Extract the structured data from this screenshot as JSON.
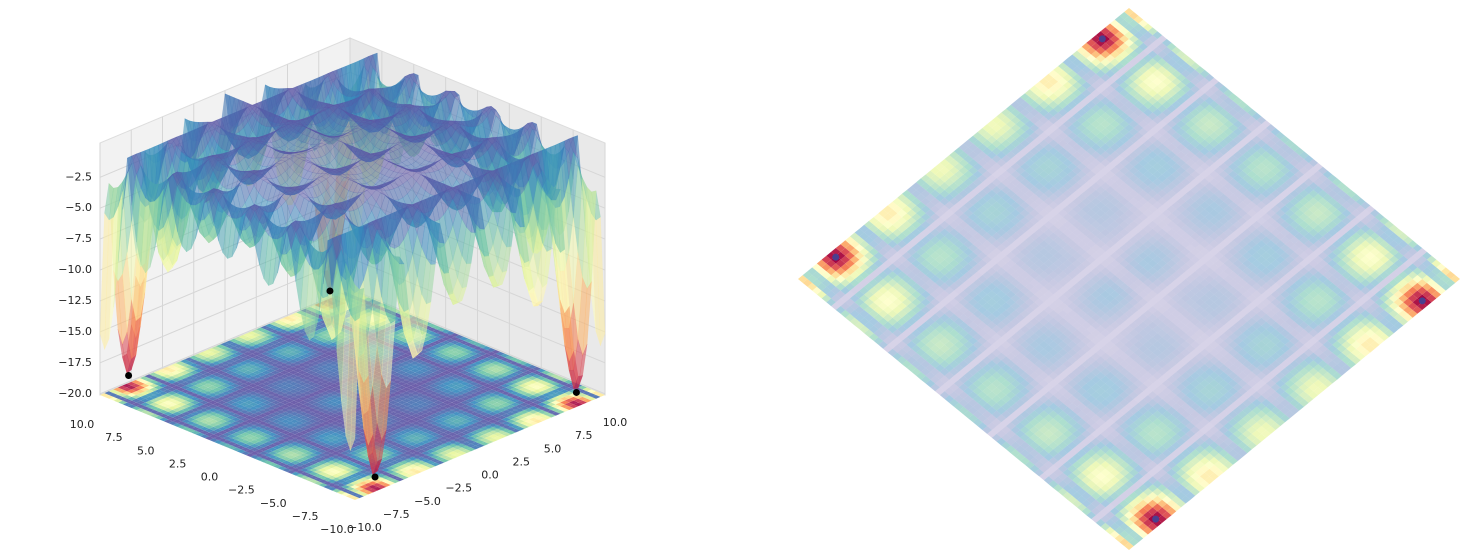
{
  "chart_data": [
    {
      "type": "surface",
      "colormap": "Spectral",
      "xlim": [
        -10,
        10
      ],
      "ylim": [
        -10,
        10
      ],
      "zlim": [
        -20.1,
        -0.7
      ],
      "xticks": [
        {
          "value": -10,
          "label": "−10.0"
        },
        {
          "value": -7.5,
          "label": "−7.5"
        },
        {
          "value": -5,
          "label": "−5.0"
        },
        {
          "value": -2.5,
          "label": "−2.5"
        },
        {
          "value": 0,
          "label": "0.0"
        },
        2.5,
        {
          "value": 5,
          "label": "5.0"
        },
        7.5,
        {
          "value": 10,
          "label": "10.0"
        }
      ],
      "yticks": [
        {
          "value": -10,
          "label": "−10.0"
        },
        {
          "value": -7.5,
          "label": "−7.5"
        },
        {
          "value": -5,
          "label": "−5.0"
        },
        {
          "value": -2.5,
          "label": "−2.5"
        },
        {
          "value": 0,
          "label": "0.0"
        },
        2.5,
        {
          "value": 5,
          "label": "5.0"
        },
        7.5,
        {
          "value": 10,
          "label": "10.0"
        }
      ],
      "zticks": [
        {
          "value": -20,
          "label": "−20.0"
        },
        {
          "value": -17.5,
          "label": "−17.5"
        },
        {
          "value": -15,
          "label": "−15.0"
        },
        {
          "value": -12.5,
          "label": "−12.5"
        },
        {
          "value": -10,
          "label": "−10.0"
        },
        {
          "value": -7.5,
          "label": "−7.5"
        },
        {
          "value": -5,
          "label": "−5.0"
        },
        {
          "value": -2.5,
          "label": "−2.5"
        }
      ],
      "points": {
        "x": [
          8.055,
          -8.055,
          8.055,
          -8.055
        ],
        "y": [
          9.665,
          9.665,
          -9.665,
          -9.665
        ],
        "z": [
          -19.21,
          -19.21,
          -19.21,
          -19.21
        ]
      },
      "point_color": "#000000"
    },
    {
      "type": "contour",
      "colormap": "Spectral",
      "xlim": [
        -10,
        10
      ],
      "ylim": [
        -10,
        10
      ],
      "points": {
        "x": [
          8.055,
          -8.055,
          8.055,
          -8.055
        ],
        "y": [
          9.665,
          9.665,
          -9.665,
          -9.665
        ]
      },
      "point_color": "#4b3f8f"
    }
  ]
}
